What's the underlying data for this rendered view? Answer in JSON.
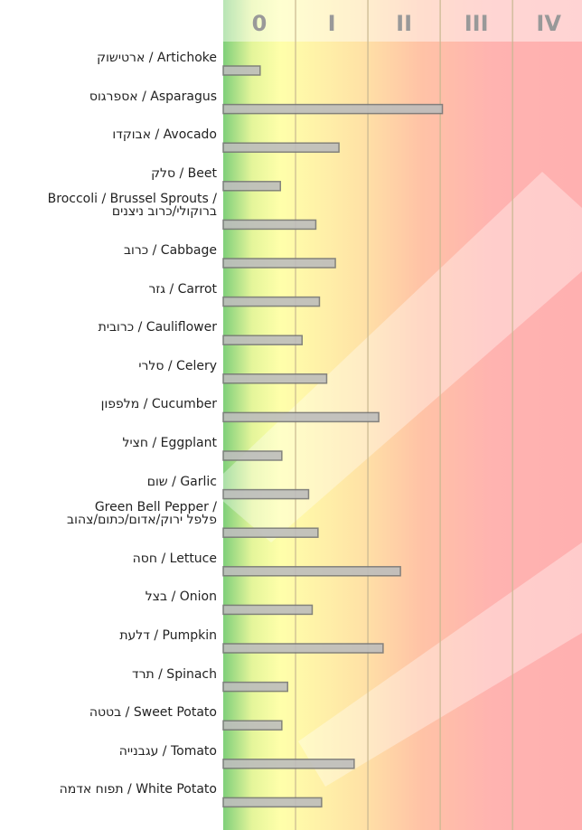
{
  "chart_data": {
    "type": "bar",
    "orientation": "horizontal",
    "categories": [
      "ארטישוק / Artichoke",
      "אספרגוס / Asparagus",
      "אבוקדו / Avocado",
      "סלק / Beet",
      "Broccoli / Brussel Sprouts /\nברוקולי/כרוב ניצנים",
      "כרוב / Cabbage",
      "גזר / Carrot",
      "כרובית / Cauliflower",
      "סלרי / Celery",
      "מלפפון / Cucumber",
      "חציל / Eggplant",
      "שום / Garlic",
      "Green Bell Pepper /\nפלפל ירוק/אדום/כתום/צהוב",
      "חסה / Lettuce",
      "בצל / Onion",
      "דלעת / Pumpkin",
      "תרד / Spinach",
      "בטטה / Sweet Potato",
      "עגבנייה / Tomato",
      "תפוח אדמה / White Potato"
    ],
    "values": [
      0.51,
      3.03,
      1.6,
      0.79,
      1.28,
      1.55,
      1.33,
      1.09,
      1.43,
      2.15,
      0.81,
      1.18,
      1.31,
      2.45,
      1.23,
      2.21,
      0.89,
      0.81,
      1.81,
      1.36
    ],
    "color": "#bdbdbd",
    "xlim": [
      0,
      4.96
    ],
    "xticks": [
      {
        "value": 0.5,
        "label": "0"
      },
      {
        "value": 1.5,
        "label": "I"
      },
      {
        "value": 2.5,
        "label": "II"
      },
      {
        "value": 3.5,
        "label": "III"
      },
      {
        "value": 4.5,
        "label": "IV"
      }
    ],
    "xgrid": [
      1,
      2,
      3,
      4
    ]
  }
}
